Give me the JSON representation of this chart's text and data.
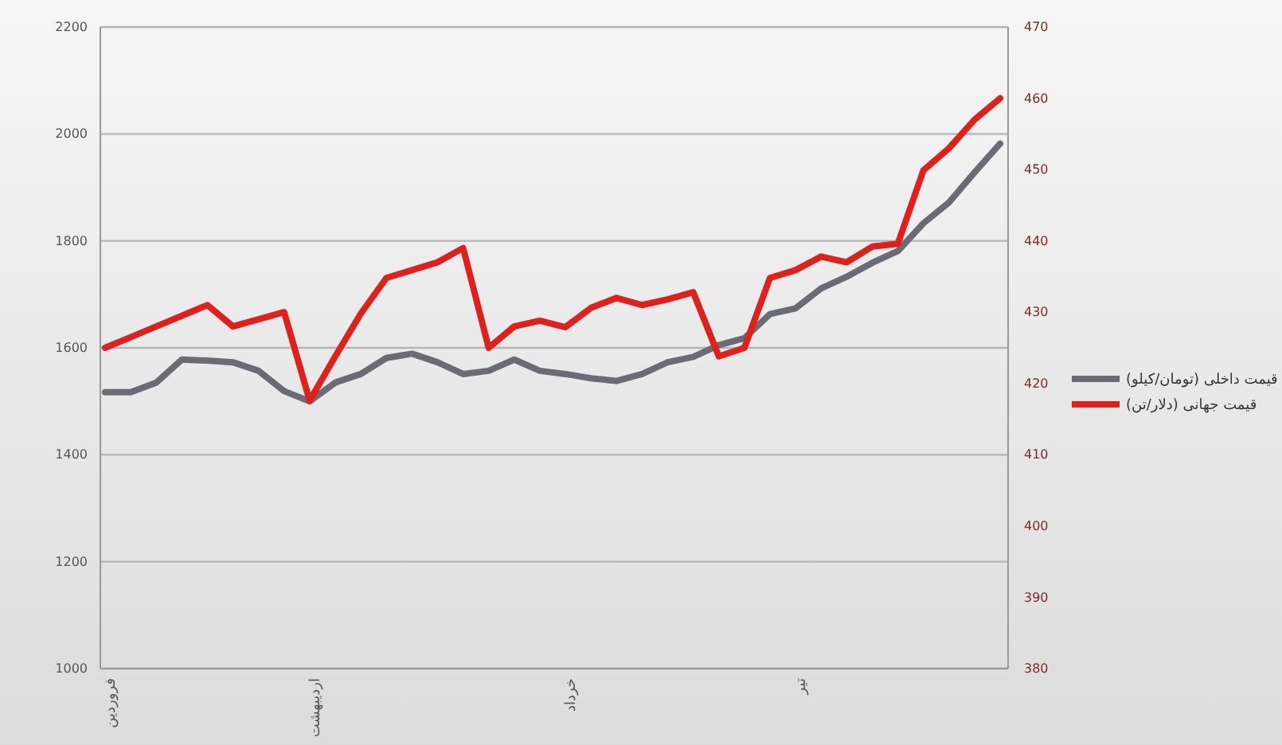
{
  "chart_data": {
    "type": "line",
    "categories": [
      "فروردین",
      null,
      null,
      null,
      null,
      null,
      null,
      null,
      "اردیبهشت",
      null,
      null,
      null,
      null,
      null,
      null,
      null,
      null,
      null,
      "خرداد",
      null,
      null,
      null,
      null,
      null,
      null,
      null,
      null,
      "تیر",
      null,
      null,
      null,
      null,
      null,
      null,
      null,
      null
    ],
    "series": [
      {
        "name": "قیمت داخلی (تومان/کیلو)",
        "color": "#6b6b73",
        "values": [
          1517,
          1517,
          1535,
          1578,
          1576,
          1573,
          1557,
          1519,
          1500,
          1535,
          1551,
          1581,
          1589,
          1573,
          1551,
          1557,
          1578,
          1557,
          1551,
          1543,
          1538,
          1551,
          1573,
          1583,
          1605,
          1618,
          1663,
          1674,
          1711,
          1733,
          1759,
          1781,
          1833,
          1872,
          1928,
          1982
        ]
      },
      {
        "name": "قیمت جهانی (دلار/تن)",
        "color": "#e0201b",
        "axis": "y2",
        "values": [
          425,
          426.5,
          428,
          429.5,
          431,
          428,
          429,
          430,
          417.6,
          423.8,
          429.8,
          434.8,
          435.9,
          437,
          439,
          425,
          428,
          428.8,
          427.9,
          430.6,
          432,
          431,
          431.8,
          432.8,
          423.8,
          425,
          434.8,
          435.9,
          437.8,
          437,
          439.2,
          439.6,
          449.9,
          453,
          457,
          460
        ]
      }
    ],
    "ylim": [
      1000,
      2200
    ],
    "yticks": [
      1000,
      1200,
      1400,
      1600,
      1800,
      2000,
      2200
    ],
    "y2lim": [
      380,
      470
    ],
    "y2ticks": [
      380,
      390,
      400,
      410,
      420,
      430,
      440,
      450,
      460,
      470
    ],
    "grid": "y",
    "legend": "right",
    "line_style": "solid",
    "marker": "none"
  }
}
